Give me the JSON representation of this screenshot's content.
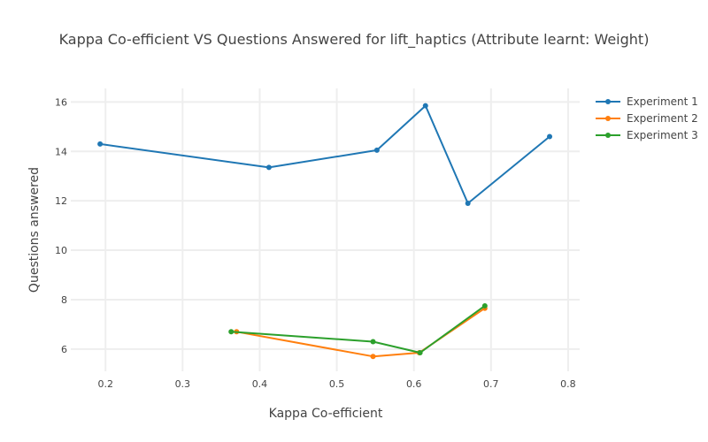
{
  "chart_data": {
    "type": "line",
    "title": "Kappa Co-efficient VS Questions Answered for lift_haptics (Attribute learnt: Weight)",
    "xlabel": "Kappa Co-efficient",
    "ylabel": "Questions answered",
    "xlim": [
      0.155,
      0.815
    ],
    "ylim": [
      5.1,
      16.55
    ],
    "xticks": [
      0.2,
      0.3,
      0.4,
      0.5,
      0.6,
      0.7,
      0.8
    ],
    "yticks": [
      6,
      8,
      10,
      12,
      14,
      16
    ],
    "grid": true,
    "legend_position": "top-right",
    "series": [
      {
        "name": "Experiment 1",
        "color": "#1f77b4",
        "x": [
          0.193,
          0.412,
          0.552,
          0.615,
          0.67,
          0.776
        ],
        "y": [
          14.3,
          13.35,
          14.05,
          15.85,
          11.9,
          14.6
        ]
      },
      {
        "name": "Experiment 2",
        "color": "#ff7f0e",
        "x": [
          0.37,
          0.547,
          0.607,
          0.692
        ],
        "y": [
          6.7,
          5.7,
          5.85,
          7.65
        ]
      },
      {
        "name": "Experiment 3",
        "color": "#2ca02c",
        "x": [
          0.363,
          0.547,
          0.608,
          0.692
        ],
        "y": [
          6.7,
          6.3,
          5.85,
          7.75
        ]
      }
    ]
  }
}
